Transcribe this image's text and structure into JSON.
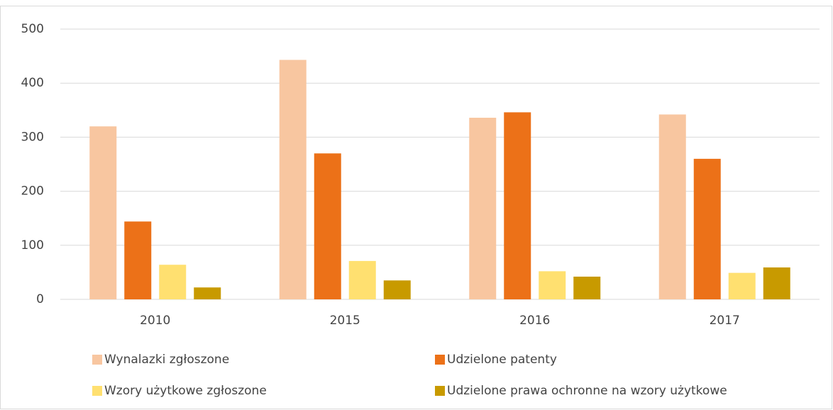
{
  "chart_data": {
    "type": "bar",
    "categories": [
      "2010",
      "2015",
      "2016",
      "2017"
    ],
    "series": [
      {
        "name": "Wynalazki zgłoszone",
        "color": "#f8c6a0",
        "values": [
          320,
          443,
          336,
          342
        ]
      },
      {
        "name": "Udzielone patenty",
        "color": "#ec7118",
        "values": [
          144,
          270,
          346,
          260
        ]
      },
      {
        "name": "Wzory użytkowe zgłoszone",
        "color": "#ffe070",
        "values": [
          64,
          71,
          52,
          49
        ]
      },
      {
        "name": "Udzielone prawa ochronne na wzory użytkowe",
        "color": "#c89a00",
        "values": [
          22,
          35,
          42,
          59
        ]
      }
    ],
    "ylim": [
      0,
      500
    ],
    "yticks": [
      0,
      100,
      200,
      300,
      400,
      500
    ],
    "grid": true,
    "legend": "bottom"
  }
}
